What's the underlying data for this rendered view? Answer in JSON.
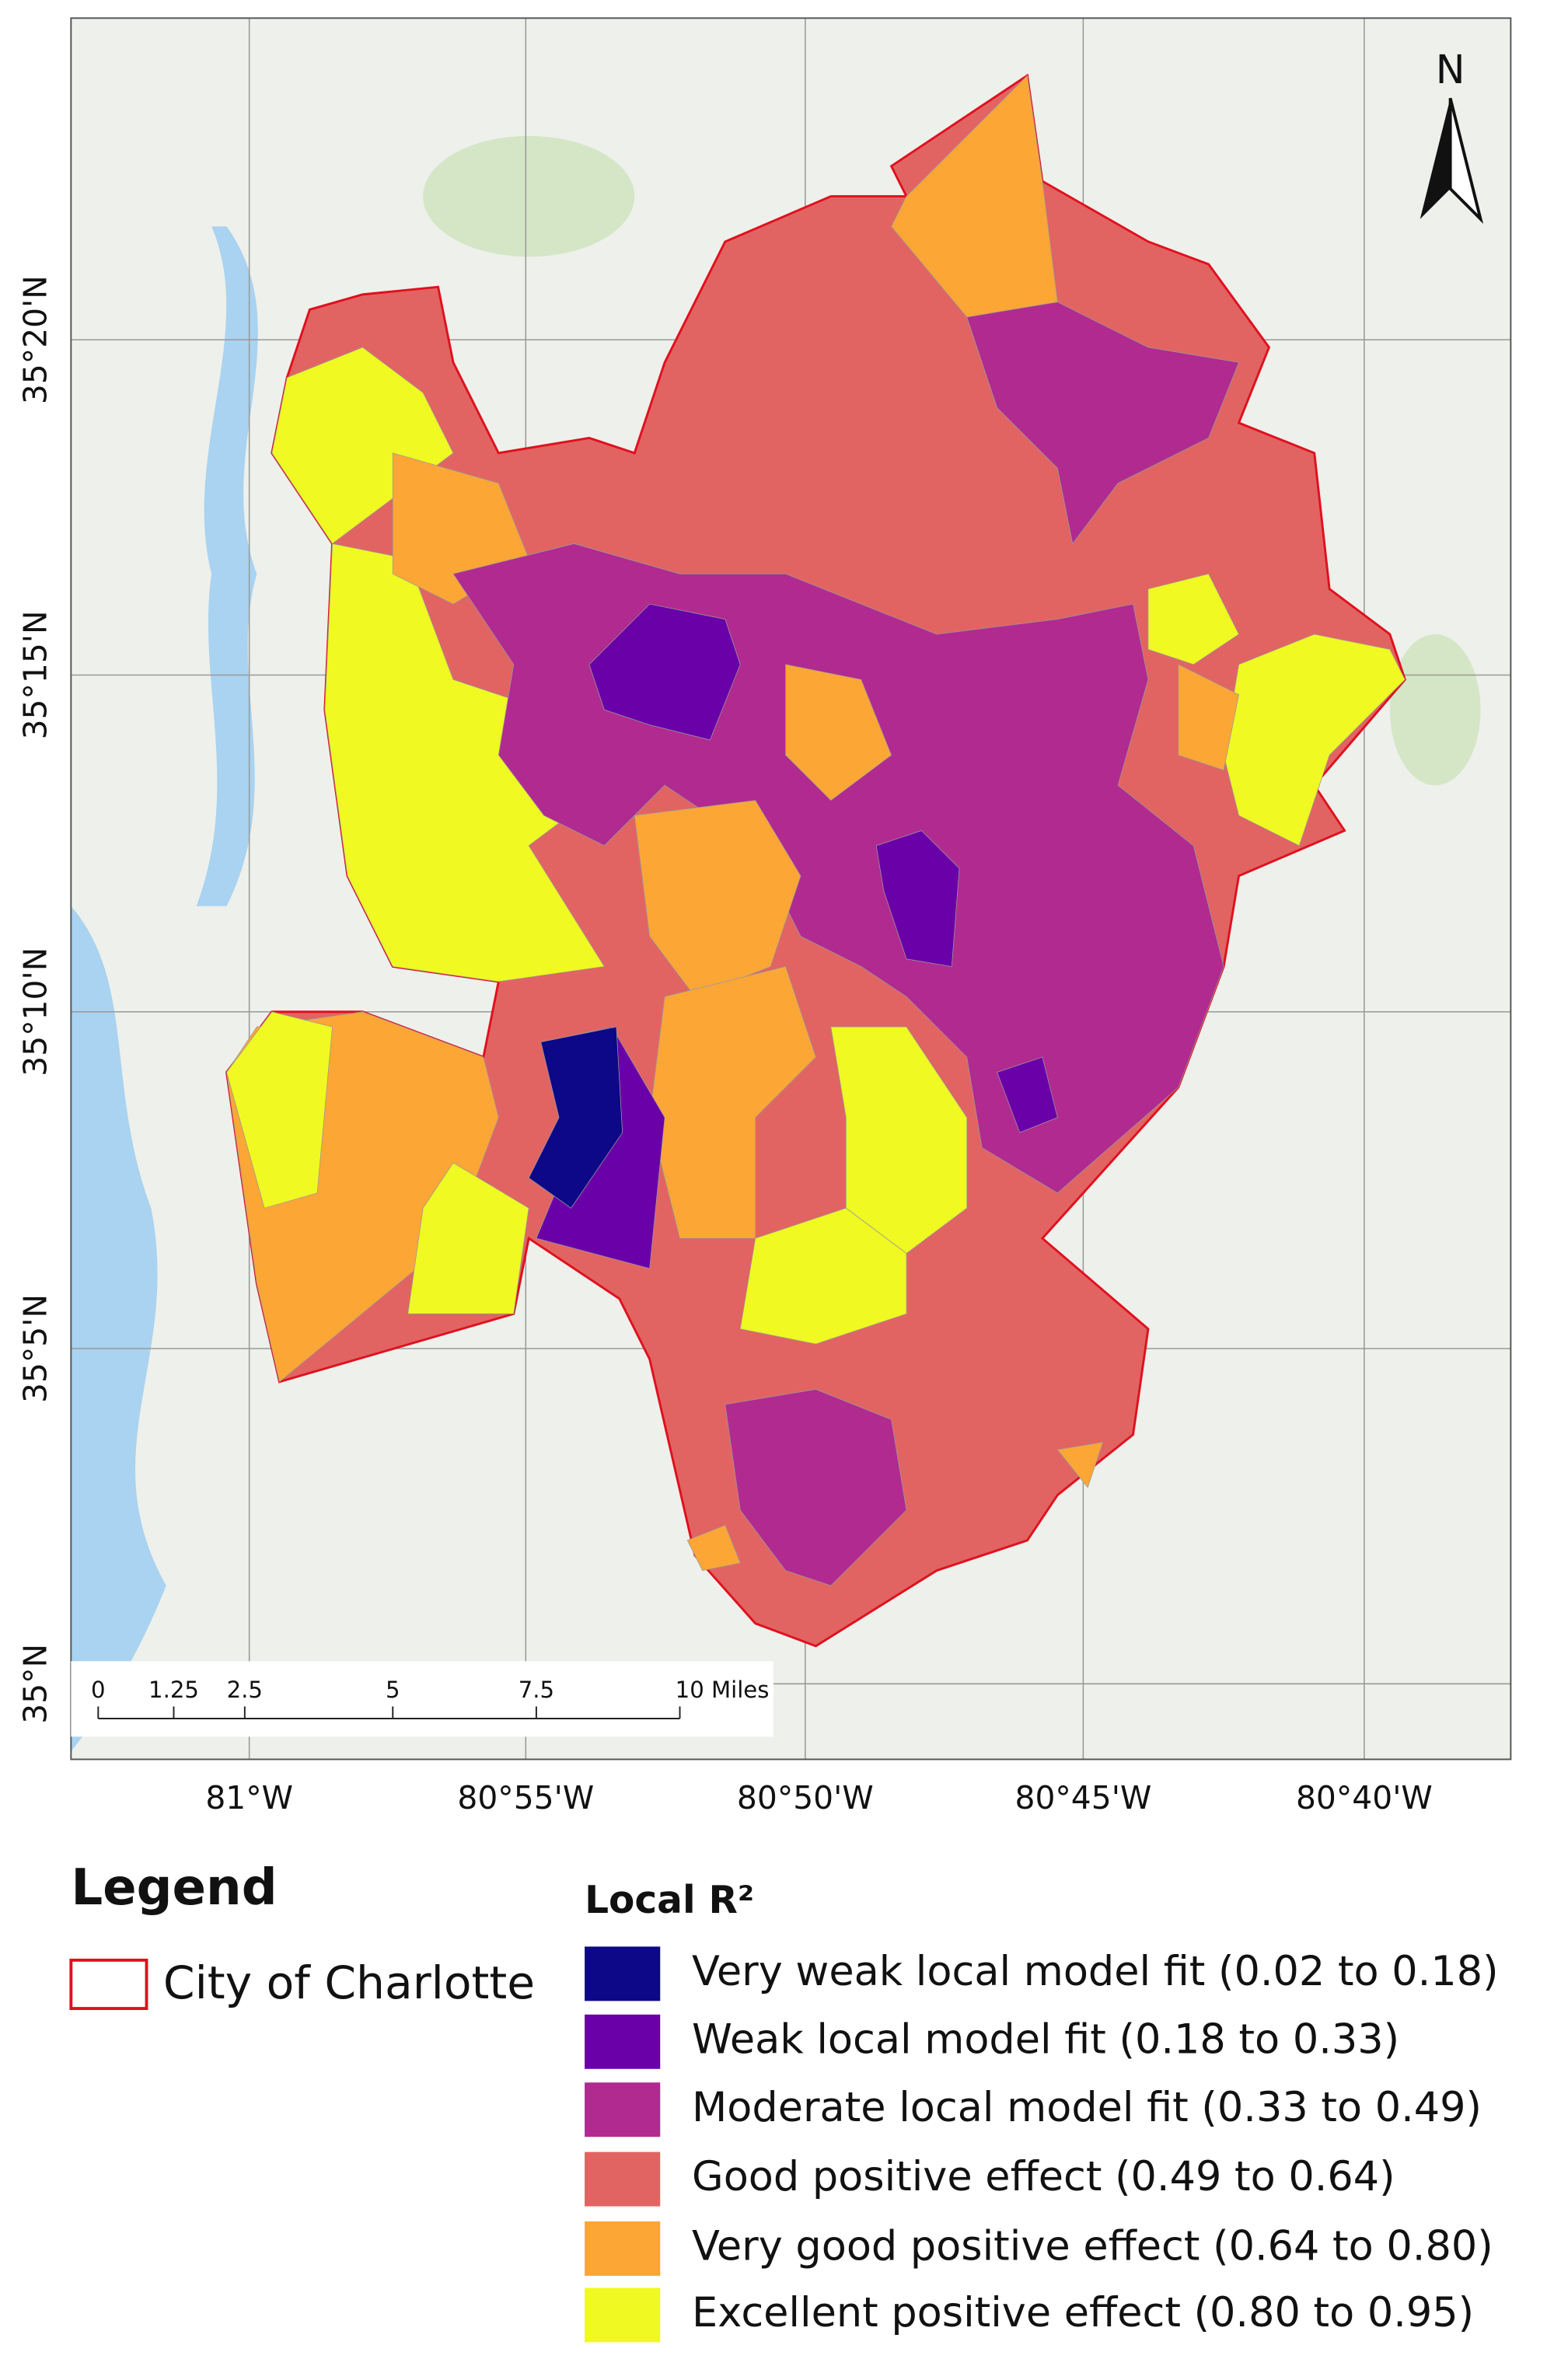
{
  "map": {
    "north_label": "N",
    "lat_labels": [
      "35°20'N",
      "35°15'N",
      "35°10'N",
      "35°5'N",
      "35°N"
    ],
    "lon_labels": [
      "81°W",
      "80°55'W",
      "80°50'W",
      "80°45'W",
      "80°40'W"
    ],
    "scale_bar": [
      "0",
      "1.25",
      "2.5",
      "5",
      "7.5",
      "10 Miles"
    ]
  },
  "legend": {
    "title": "Legend",
    "boundary": "City of Charlotte",
    "fill_title": "Local R²",
    "classes": [
      {
        "label": "Very weak local model fit (0.02 to 0.18)",
        "color": "#0d0887"
      },
      {
        "label": "Weak local model fit (0.18 to 0.33)",
        "color": "#6a00a8"
      },
      {
        "label": "Moderate local model fit (0.33 to 0.49)",
        "color": "#b12a90"
      },
      {
        "label": "Good positive effect (0.49 to 0.64)",
        "color": "#e16462"
      },
      {
        "label": "Very good positive effect (0.64 to 0.80)",
        "color": "#fca636"
      },
      {
        "label": "Excellent positive effect (0.80 to 0.95)",
        "color": "#f0f921"
      }
    ]
  }
}
